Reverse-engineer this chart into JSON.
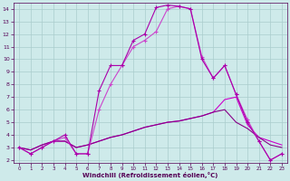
{
  "xlabel": "Windchill (Refroidissement éolien,°C)",
  "ylabel": "",
  "xlim": [
    -0.5,
    23.5
  ],
  "ylim": [
    1.8,
    14.5
  ],
  "xticks": [
    0,
    1,
    2,
    3,
    4,
    5,
    6,
    7,
    8,
    9,
    10,
    11,
    12,
    13,
    14,
    15,
    16,
    17,
    18,
    19,
    20,
    21,
    22,
    23
  ],
  "yticks": [
    2,
    3,
    4,
    5,
    6,
    7,
    8,
    9,
    10,
    11,
    12,
    13,
    14
  ],
  "bg_color": "#ceeaea",
  "grid_color": "#aacccc",
  "series1_x": [
    0,
    1,
    2,
    3,
    4,
    5,
    6,
    7,
    8,
    9,
    10,
    11,
    12,
    13,
    14,
    15,
    16,
    17,
    18,
    19,
    20,
    21,
    22,
    23
  ],
  "series1_y": [
    3.0,
    2.5,
    3.0,
    3.5,
    4.0,
    2.5,
    2.5,
    7.5,
    9.5,
    9.5,
    11.5,
    12.0,
    14.1,
    14.3,
    14.2,
    14.0,
    10.0,
    8.5,
    9.5,
    7.2,
    5.0,
    3.5,
    2.0,
    2.5
  ],
  "series2_x": [
    0,
    1,
    2,
    3,
    4,
    5,
    6,
    7,
    8,
    9,
    10,
    11,
    12,
    13,
    14,
    15,
    16,
    17,
    18,
    19,
    20,
    21,
    22,
    23
  ],
  "series2_y": [
    3.0,
    2.5,
    3.0,
    3.5,
    3.8,
    2.5,
    2.5,
    6.0,
    8.0,
    9.5,
    11.0,
    11.5,
    12.2,
    14.0,
    14.2,
    14.0,
    10.2,
    8.5,
    9.5,
    7.2,
    5.2,
    3.5,
    2.0,
    2.5
  ],
  "series3_x": [
    0,
    1,
    2,
    3,
    4,
    5,
    6,
    7,
    8,
    9,
    10,
    11,
    12,
    13,
    14,
    15,
    16,
    17,
    18,
    19,
    20,
    21,
    22,
    23
  ],
  "series3_y": [
    3.0,
    2.8,
    3.2,
    3.5,
    3.5,
    3.0,
    3.2,
    3.5,
    3.8,
    4.0,
    4.3,
    4.6,
    4.8,
    5.0,
    5.1,
    5.3,
    5.5,
    5.8,
    6.0,
    5.0,
    4.5,
    3.8,
    3.2,
    3.0
  ],
  "series4_x": [
    0,
    1,
    2,
    3,
    4,
    5,
    6,
    7,
    8,
    9,
    10,
    11,
    12,
    13,
    14,
    15,
    16,
    17,
    18,
    19,
    20,
    21,
    22,
    23
  ],
  "series4_y": [
    3.0,
    2.8,
    3.2,
    3.5,
    3.5,
    3.0,
    3.2,
    3.5,
    3.8,
    4.0,
    4.3,
    4.6,
    4.8,
    5.0,
    5.1,
    5.3,
    5.5,
    5.8,
    6.8,
    7.0,
    4.8,
    3.8,
    3.5,
    3.2
  ],
  "color1": "#aa00aa",
  "color2": "#cc44cc",
  "color3": "#880088",
  "color4": "#cc00cc"
}
